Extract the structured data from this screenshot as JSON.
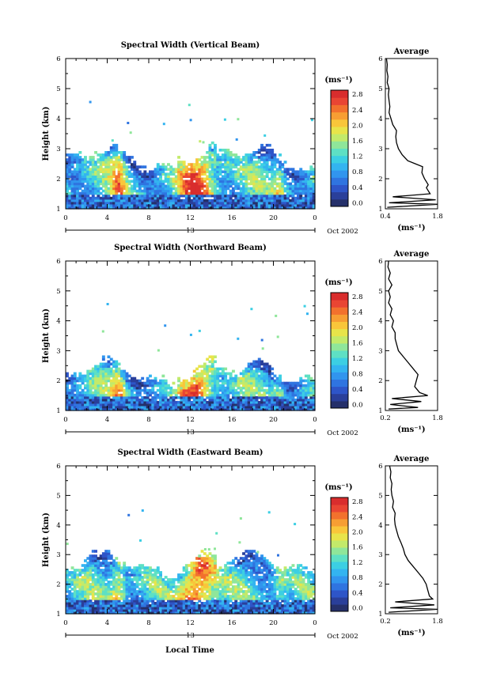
{
  "shared": {
    "date_label": "Oct 2002",
    "x_label": "Local Time",
    "day_label": "13",
    "avg_title": "Average",
    "unit_label": "(ms⁻¹)"
  },
  "chart_data": [
    {
      "type": "heatmap",
      "title": "Spectral Width (Vertical Beam)",
      "xlabel": "",
      "ylabel": "Height (km)",
      "x_ticks": [
        "0",
        "4",
        "8",
        "12",
        "16",
        "20",
        "0"
      ],
      "y_ticks": [
        "1",
        "2",
        "3",
        "4",
        "5",
        "6"
      ],
      "xlim": [
        0,
        24
      ],
      "ylim": [
        1,
        6
      ],
      "colorbar": {
        "label": "(ms⁻¹)",
        "ticks": [
          "2.8",
          "2.4",
          "2.0",
          "1.6",
          "1.2",
          "0.8",
          "0.4",
          "0.0"
        ],
        "range": [
          0,
          3.0
        ]
      },
      "profile": {
        "title": "Average",
        "xlabel": "(ms⁻¹)",
        "x_ticks": [
          "0.4",
          "1.8"
        ],
        "xlim": [
          0.4,
          1.8
        ],
        "y_ticks": [
          "1",
          "2",
          "3",
          "4",
          "5",
          "6"
        ],
        "heights": [
          1.05,
          1.15,
          1.2,
          1.3,
          1.4,
          1.5,
          1.6,
          1.7,
          1.8,
          1.9,
          2.0,
          2.2,
          2.4,
          2.5,
          2.6,
          2.8,
          3.0,
          3.2,
          3.4,
          3.6,
          3.8,
          4.0,
          4.2,
          4.4,
          4.6,
          4.8,
          5.0,
          5.2,
          5.4,
          5.6,
          5.8,
          6.0
        ],
        "values": [
          0.45,
          1.8,
          0.5,
          1.75,
          0.6,
          1.6,
          1.55,
          1.5,
          1.55,
          1.5,
          1.45,
          1.38,
          1.4,
          1.2,
          1.0,
          0.85,
          0.75,
          0.7,
          0.68,
          0.7,
          0.6,
          0.55,
          0.5,
          0.52,
          0.5,
          0.48,
          0.5,
          0.45,
          0.47,
          0.44,
          0.45,
          0.43
        ]
      }
    },
    {
      "type": "heatmap",
      "title": "Spectral Width (Northward Beam)",
      "xlabel": "",
      "ylabel": "Height (km)",
      "x_ticks": [
        "0",
        "4",
        "8",
        "12",
        "16",
        "20",
        "0"
      ],
      "y_ticks": [
        "1",
        "2",
        "3",
        "4",
        "5",
        "6"
      ],
      "xlim": [
        0,
        24
      ],
      "ylim": [
        1,
        6
      ],
      "colorbar": {
        "label": "(ms⁻¹)",
        "ticks": [
          "2.8",
          "2.4",
          "2.0",
          "1.6",
          "1.2",
          "0.8",
          "0.4",
          "0.0"
        ],
        "range": [
          0,
          3.0
        ]
      },
      "profile": {
        "title": "Average",
        "xlabel": "(ms⁻¹)",
        "x_ticks": [
          "0.2",
          "1.8"
        ],
        "xlim": [
          0.2,
          1.8
        ],
        "y_ticks": [
          "1",
          "2",
          "3",
          "4",
          "5",
          "6"
        ],
        "heights": [
          1.05,
          1.1,
          1.2,
          1.3,
          1.4,
          1.5,
          1.6,
          1.8,
          2.0,
          2.2,
          2.4,
          2.6,
          2.8,
          3.0,
          3.2,
          3.4,
          3.6,
          3.8,
          4.0,
          4.2,
          4.4,
          4.6,
          4.8,
          5.0,
          5.2,
          5.4,
          5.6,
          5.8,
          6.0
        ],
        "values": [
          0.3,
          1.2,
          0.35,
          1.3,
          0.4,
          1.5,
          1.25,
          1.1,
          1.15,
          1.2,
          1.05,
          0.9,
          0.75,
          0.6,
          0.55,
          0.5,
          0.5,
          0.4,
          0.45,
          0.35,
          0.4,
          0.3,
          0.35,
          0.3,
          0.4,
          0.3,
          0.35,
          0.28,
          0.3
        ]
      }
    },
    {
      "type": "heatmap",
      "title": "Spectral Width (Eastward Beam)",
      "xlabel": "Local Time",
      "ylabel": "Height (km)",
      "x_ticks": [
        "0",
        "4",
        "8",
        "12",
        "16",
        "20",
        "0"
      ],
      "y_ticks": [
        "1",
        "2",
        "3",
        "4",
        "5",
        "6"
      ],
      "xlim": [
        0,
        24
      ],
      "ylim": [
        1,
        6
      ],
      "colorbar": {
        "label": "(ms⁻¹)",
        "ticks": [
          "2.8",
          "2.4",
          "2.0",
          "1.6",
          "1.2",
          "0.8",
          "0.4",
          "0.0"
        ],
        "range": [
          0,
          3.0
        ]
      },
      "profile": {
        "title": "Average",
        "xlabel": "(ms⁻¹)",
        "x_ticks": [
          "0.2",
          "1.8"
        ],
        "xlim": [
          0.2,
          1.8
        ],
        "y_ticks": [
          "1",
          "2",
          "3",
          "4",
          "5",
          "6"
        ],
        "heights": [
          1.05,
          1.15,
          1.2,
          1.3,
          1.4,
          1.5,
          1.6,
          1.8,
          2.0,
          2.2,
          2.4,
          2.6,
          2.8,
          3.0,
          3.2,
          3.4,
          3.6,
          3.8,
          4.0,
          4.2,
          4.4,
          4.6,
          4.8,
          5.0,
          5.2,
          5.4,
          5.6,
          5.8,
          6.0
        ],
        "values": [
          0.3,
          1.8,
          0.35,
          1.7,
          0.5,
          1.65,
          1.55,
          1.5,
          1.45,
          1.35,
          1.2,
          1.05,
          0.9,
          0.8,
          0.75,
          0.68,
          0.6,
          0.55,
          0.5,
          0.48,
          0.5,
          0.42,
          0.45,
          0.4,
          0.38,
          0.4,
          0.35,
          0.37,
          0.33
        ]
      }
    }
  ]
}
